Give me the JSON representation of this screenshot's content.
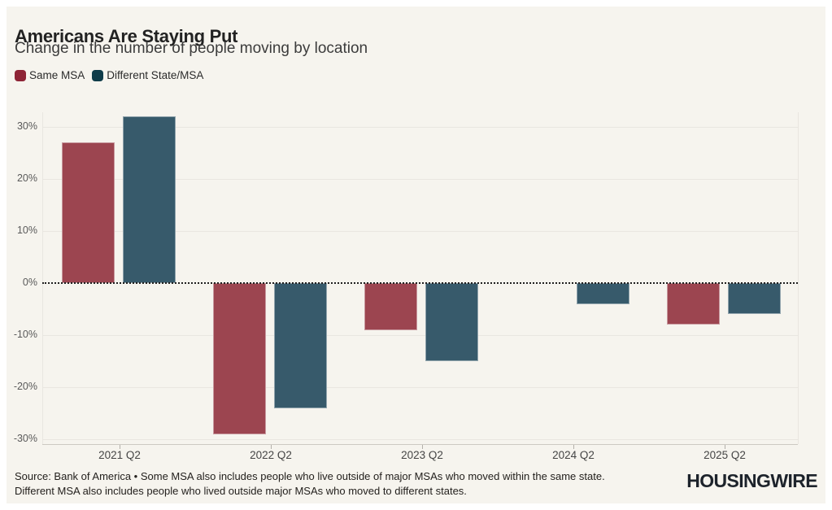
{
  "header": {
    "title": "Americans Are Staying Put",
    "subtitle": "Change in the number of people moving by location"
  },
  "legend": [
    {
      "label": "Same MSA",
      "color": "#8e2436"
    },
    {
      "label": "Different State/MSA",
      "color": "#0f3c49"
    }
  ],
  "chart_data": {
    "type": "bar",
    "title": "Americans Are Staying Put",
    "subtitle": "Change in the number of people moving by location",
    "categories": [
      "2021 Q2",
      "2022 Q2",
      "2023 Q2",
      "2024 Q2",
      "2025 Q2"
    ],
    "series": [
      {
        "name": "Same MSA",
        "color": "#9c4550",
        "values": [
          27,
          -29,
          -9,
          0,
          -8
        ]
      },
      {
        "name": "Different State/MSA",
        "color": "#375a6b",
        "values": [
          32,
          -24,
          -15,
          -4,
          -6
        ]
      }
    ],
    "xlabel": "",
    "ylabel": "",
    "y_ticks": [
      30,
      20,
      10,
      0,
      -10,
      -20,
      -30
    ],
    "y_tick_labels": [
      "30%",
      "20%",
      "10%",
      "0%",
      "-10%",
      "-20%",
      "-30%"
    ],
    "ylim": [
      -31,
      32.5
    ],
    "grid": true,
    "zero_line": "dotted",
    "legend_position": "top-left"
  },
  "footer": {
    "source_line1": "Source: Bank of America • Some MSA also includes people who live outside of major MSAs who moved within the same state.",
    "source_line2": "Different MSA also includes people who lived outside major MSAs who moved to different states.",
    "logo": "HOUSINGWIRE"
  },
  "colors": {
    "card_background": "#f6f4ee",
    "page_background": "#ffffff",
    "same_msa_bar": "#9c4550",
    "different_msa_bar": "#375a6b",
    "same_msa_legend": "#8e2436",
    "different_msa_legend": "#0f3c49",
    "gridline": "#e9e6e0",
    "zero_line": "#1f1f1f"
  }
}
